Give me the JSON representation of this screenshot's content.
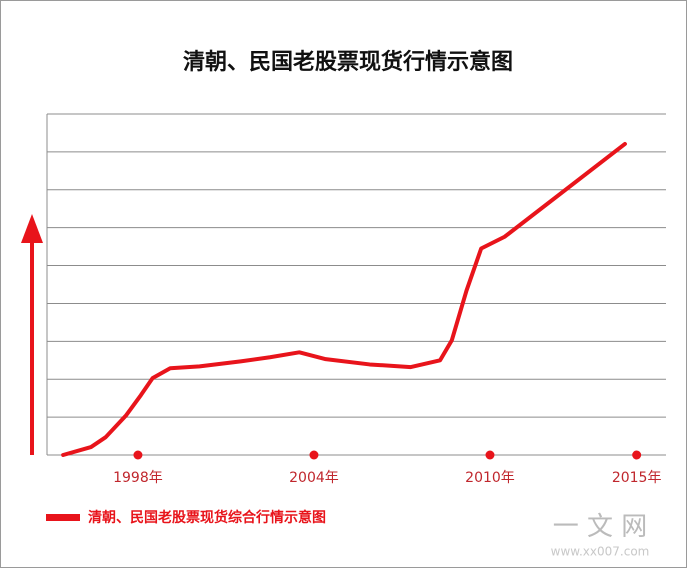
{
  "chart_data": {
    "type": "line",
    "title": "清朝、民国老股票现货行情示意图",
    "x": [
      1995.45,
      1996.4,
      1996.9,
      1997.6,
      1998.1,
      1998.5,
      1999.1,
      2000.1,
      2001.5,
      2002.5,
      2003.5,
      2004.4,
      2005.9,
      2007.3,
      2008.3,
      2008.7,
      2009.2,
      2009.7,
      2010.5,
      2014.6
    ],
    "series": [
      {
        "name": "清朝、民国老股票现货综合行情示意图",
        "color": "#e8141b",
        "values": [
          0,
          0.21,
          0.47,
          1.05,
          1.58,
          2.03,
          2.29,
          2.34,
          2.47,
          2.58,
          2.71,
          2.53,
          2.39,
          2.32,
          2.5,
          3.03,
          4.34,
          5.45,
          5.76,
          8.21
        ]
      }
    ],
    "xlim": [
      1994.9,
      2016
    ],
    "xticks": [
      {
        "value": 1998,
        "label": "1998年"
      },
      {
        "value": 2004,
        "label": "2004年"
      },
      {
        "value": 2010,
        "label": "2010年"
      },
      {
        "value": 2015,
        "label": "2015年"
      }
    ],
    "ylim": [
      0,
      9
    ],
    "yticks": [
      0,
      1,
      2,
      3,
      4,
      5,
      6,
      7,
      8,
      9
    ],
    "grid": true
  },
  "watermark": {
    "brand": "一 文 网",
    "url": "www.xx007.com"
  }
}
